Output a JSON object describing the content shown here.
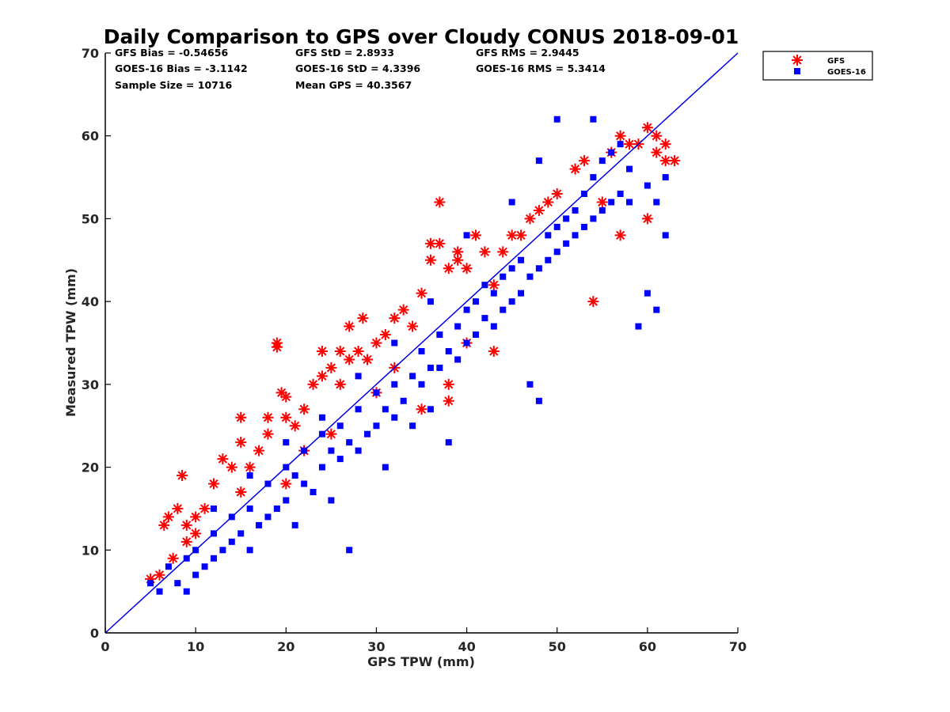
{
  "chart_data": {
    "type": "scatter",
    "title": "Daily Comparison to GPS over Cloudy CONUS 2018-09-01",
    "xlabel": "GPS TPW (mm)",
    "ylabel": "Measured TPW (mm)",
    "xlim": [
      0,
      70
    ],
    "ylim": [
      0,
      70
    ],
    "xticks": [
      "0",
      "10",
      "20",
      "30",
      "40",
      "50",
      "60",
      "70"
    ],
    "yticks": [
      "0",
      "10",
      "20",
      "30",
      "40",
      "50",
      "60",
      "70"
    ],
    "grid": false,
    "legend_position": "outside-top-right",
    "reference_line": {
      "x": [
        0,
        70
      ],
      "y": [
        0,
        70
      ],
      "color": "#0000e6"
    },
    "stats": [
      "GFS Bias = -0.54656",
      "GFS StD = 2.8933",
      "GFS RMS = 2.9445",
      "GOES-16 Bias = -3.1142",
      "GOES-16 StD = 4.3396",
      "GOES-16 RMS = 5.3414",
      "Sample Size = 10716",
      "Mean GPS = 40.3567"
    ],
    "series": [
      {
        "name": "GFS",
        "marker": "asterisk",
        "color": "#ff0000",
        "points": [
          [
            5,
            6.5
          ],
          [
            6,
            7
          ],
          [
            6.5,
            13
          ],
          [
            7,
            14
          ],
          [
            7.5,
            9
          ],
          [
            8,
            15
          ],
          [
            8.5,
            19
          ],
          [
            9,
            11
          ],
          [
            9,
            13
          ],
          [
            10,
            12
          ],
          [
            10,
            14
          ],
          [
            11,
            15
          ],
          [
            12,
            18
          ],
          [
            13,
            21
          ],
          [
            14,
            20
          ],
          [
            15,
            26
          ],
          [
            15,
            23
          ],
          [
            15,
            17
          ],
          [
            16,
            20
          ],
          [
            17,
            22
          ],
          [
            18,
            26
          ],
          [
            18,
            24
          ],
          [
            19,
            35
          ],
          [
            19,
            34.5
          ],
          [
            19.5,
            29
          ],
          [
            20,
            28.5
          ],
          [
            20,
            26
          ],
          [
            21,
            25
          ],
          [
            22,
            27
          ],
          [
            23,
            30
          ],
          [
            24,
            34
          ],
          [
            24,
            31
          ],
          [
            25,
            32
          ],
          [
            26,
            34
          ],
          [
            26,
            30
          ],
          [
            27,
            37
          ],
          [
            27,
            33
          ],
          [
            28,
            34
          ],
          [
            28.5,
            38
          ],
          [
            29,
            33
          ],
          [
            30,
            35
          ],
          [
            31,
            36
          ],
          [
            32,
            38
          ],
          [
            33,
            39
          ],
          [
            34,
            37
          ],
          [
            35,
            41
          ],
          [
            36,
            47
          ],
          [
            36,
            45
          ],
          [
            37,
            52
          ],
          [
            37,
            47
          ],
          [
            38,
            44
          ],
          [
            38,
            30
          ],
          [
            38,
            28
          ],
          [
            39,
            45
          ],
          [
            39,
            46
          ],
          [
            40,
            44
          ],
          [
            41,
            48
          ],
          [
            42,
            46
          ],
          [
            43,
            34
          ],
          [
            43,
            42
          ],
          [
            44,
            46
          ],
          [
            45,
            48
          ],
          [
            46,
            48
          ],
          [
            47,
            50
          ],
          [
            48,
            51
          ],
          [
            49,
            52
          ],
          [
            50,
            53
          ],
          [
            52,
            56
          ],
          [
            53,
            57
          ],
          [
            54,
            40
          ],
          [
            55,
            52
          ],
          [
            56,
            58
          ],
          [
            57,
            60
          ],
          [
            58,
            59
          ],
          [
            59,
            59
          ],
          [
            60,
            61
          ],
          [
            61,
            58
          ],
          [
            61,
            60
          ],
          [
            62,
            57
          ],
          [
            62,
            59
          ],
          [
            63,
            57
          ],
          [
            60,
            50
          ],
          [
            57,
            48
          ],
          [
            40,
            35
          ],
          [
            35,
            27
          ],
          [
            32,
            32
          ],
          [
            30,
            29
          ],
          [
            25,
            24
          ],
          [
            22,
            22
          ],
          [
            20,
            18
          ]
        ]
      },
      {
        "name": "GOES-16",
        "marker": "square",
        "color": "#0000ff",
        "points": [
          [
            5,
            6
          ],
          [
            6,
            5
          ],
          [
            7,
            8
          ],
          [
            8,
            6
          ],
          [
            9,
            5
          ],
          [
            9,
            9
          ],
          [
            10,
            7
          ],
          [
            10,
            10
          ],
          [
            11,
            8
          ],
          [
            12,
            9
          ],
          [
            12,
            12
          ],
          [
            13,
            10
          ],
          [
            14,
            11
          ],
          [
            14,
            14
          ],
          [
            15,
            12
          ],
          [
            16,
            10
          ],
          [
            16,
            15
          ],
          [
            17,
            13
          ],
          [
            18,
            14
          ],
          [
            18,
            18
          ],
          [
            19,
            15
          ],
          [
            20,
            16
          ],
          [
            20,
            20
          ],
          [
            21,
            13
          ],
          [
            21,
            19
          ],
          [
            22,
            18
          ],
          [
            22,
            22
          ],
          [
            23,
            17
          ],
          [
            24,
            20
          ],
          [
            24,
            24
          ],
          [
            25,
            16
          ],
          [
            25,
            22
          ],
          [
            26,
            21
          ],
          [
            26,
            25
          ],
          [
            27,
            10
          ],
          [
            27,
            23
          ],
          [
            28,
            22
          ],
          [
            28,
            27
          ],
          [
            29,
            24
          ],
          [
            30,
            25
          ],
          [
            30,
            29
          ],
          [
            31,
            20
          ],
          [
            31,
            27
          ],
          [
            32,
            26
          ],
          [
            32,
            30
          ],
          [
            33,
            28
          ],
          [
            34,
            25
          ],
          [
            34,
            31
          ],
          [
            35,
            30
          ],
          [
            35,
            34
          ],
          [
            36,
            27
          ],
          [
            36,
            32
          ],
          [
            37,
            32
          ],
          [
            37,
            36
          ],
          [
            38,
            23
          ],
          [
            38,
            34
          ],
          [
            39,
            33
          ],
          [
            39,
            37
          ],
          [
            40,
            35
          ],
          [
            40,
            39
          ],
          [
            41,
            36
          ],
          [
            41,
            40
          ],
          [
            42,
            38
          ],
          [
            42,
            42
          ],
          [
            43,
            37
          ],
          [
            43,
            41
          ],
          [
            44,
            39
          ],
          [
            44,
            43
          ],
          [
            45,
            40
          ],
          [
            45,
            44
          ],
          [
            46,
            41
          ],
          [
            46,
            45
          ],
          [
            47,
            30
          ],
          [
            47,
            43
          ],
          [
            48,
            28
          ],
          [
            48,
            44
          ],
          [
            49,
            45
          ],
          [
            49,
            48
          ],
          [
            50,
            46
          ],
          [
            50,
            49
          ],
          [
            51,
            47
          ],
          [
            51,
            50
          ],
          [
            52,
            48
          ],
          [
            52,
            51
          ],
          [
            53,
            49
          ],
          [
            53,
            53
          ],
          [
            54,
            50
          ],
          [
            54,
            55
          ],
          [
            55,
            51
          ],
          [
            55,
            57
          ],
          [
            56,
            52
          ],
          [
            56,
            58
          ],
          [
            57,
            53
          ],
          [
            57,
            59
          ],
          [
            58,
            52
          ],
          [
            58,
            56
          ],
          [
            59,
            37
          ],
          [
            60,
            41
          ],
          [
            60,
            54
          ],
          [
            61,
            39
          ],
          [
            61,
            52
          ],
          [
            62,
            48
          ],
          [
            62,
            55
          ],
          [
            54,
            62
          ],
          [
            50,
            62
          ],
          [
            48,
            57
          ],
          [
            45,
            52
          ],
          [
            40,
            48
          ],
          [
            36,
            40
          ],
          [
            32,
            35
          ],
          [
            28,
            31
          ],
          [
            24,
            26
          ],
          [
            20,
            23
          ],
          [
            16,
            19
          ],
          [
            12,
            15
          ]
        ]
      }
    ]
  }
}
